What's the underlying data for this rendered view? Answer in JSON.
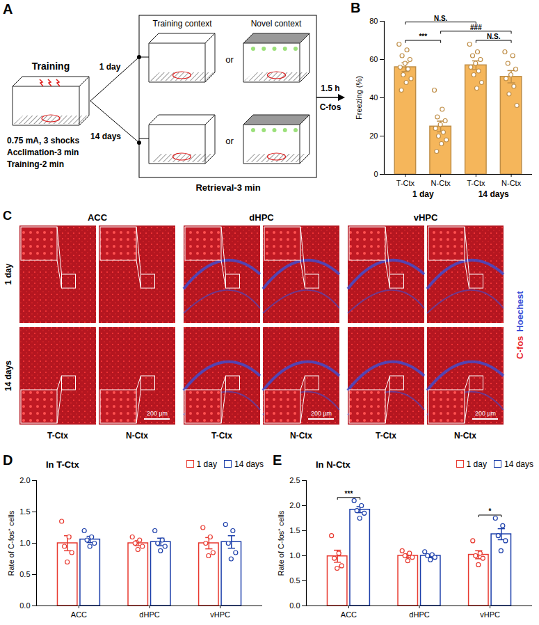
{
  "figure": {
    "A": {
      "label": "A",
      "training": "Training",
      "training_notes": [
        "0.75 mA, 3 shocks",
        "Acclimation-3 min",
        "Training-2 min"
      ],
      "delays": [
        "1 day",
        "14 days"
      ],
      "contexts": [
        "Training context",
        "Novel context"
      ],
      "or": "or",
      "retrieval": "Retrieval-3 min",
      "interval": "1.5 h",
      "readout": "C-fos"
    },
    "C": {
      "label": "C",
      "regions": [
        "ACC",
        "dHPC",
        "vHPC"
      ],
      "rows": [
        "1 day",
        "14 days"
      ],
      "columns": [
        "T-Ctx",
        "N-Ctx"
      ],
      "scale_bar": "200 µm",
      "channels": [
        {
          "name": "C-fos",
          "color": "#e8282d"
        },
        {
          "name": "Hoechest",
          "color": "#3b4fd6"
        }
      ]
    }
  },
  "chart_data": [
    {
      "panel_label": "B",
      "type": "bar",
      "categories": [
        "T-Ctx",
        "N-Ctx",
        "T-Ctx",
        "N-Ctx"
      ],
      "groups": [
        "1 day",
        "1 day",
        "14 days",
        "14 days"
      ],
      "values": [
        56,
        25,
        57,
        51
      ],
      "errors": [
        2.3,
        2.8,
        2.3,
        3.2
      ],
      "points": [
        [
          68,
          65,
          62,
          60,
          58,
          56,
          55,
          52,
          50,
          48,
          44
        ],
        [
          44,
          34,
          30,
          28,
          26,
          24,
          22,
          20,
          18,
          16,
          12
        ],
        [
          68,
          64,
          62,
          60,
          58,
          56,
          54,
          52,
          48,
          45
        ],
        [
          64,
          62,
          58,
          55,
          52,
          50,
          46,
          42,
          36
        ]
      ],
      "color": "#f5b65b",
      "ylabel": "Freezing (%)",
      "ylim": [
        0,
        80
      ],
      "yticks": [
        0,
        20,
        40,
        60,
        80
      ],
      "annotations": [
        {
          "text": "***",
          "between": [
            0,
            1
          ]
        },
        {
          "text": "###",
          "between": [
            1,
            3
          ]
        },
        {
          "text": "N.S.",
          "between": [
            0,
            2
          ]
        },
        {
          "text": "N.S.",
          "between": [
            2,
            3
          ]
        }
      ]
    },
    {
      "panel_label": "D",
      "type": "bar",
      "title": "In T-Ctx",
      "categories": [
        "ACC",
        "dHPC",
        "vHPC"
      ],
      "series": [
        {
          "name": "1 day",
          "color": "#e8392f",
          "values": [
            1.0,
            1.0,
            1.0
          ],
          "errors": [
            0.12,
            0.04,
            0.09
          ],
          "points": [
            [
              1.35,
              1.1,
              0.95,
              0.85,
              0.7
            ],
            [
              1.1,
              1.05,
              1.0,
              0.95,
              0.9
            ],
            [
              1.25,
              1.1,
              1.0,
              0.85,
              0.8
            ]
          ]
        },
        {
          "name": "14 days",
          "color": "#1c3faa",
          "values": [
            1.06,
            1.02,
            1.02
          ],
          "errors": [
            0.05,
            0.06,
            0.1
          ],
          "points": [
            [
              1.2,
              1.1,
              1.05,
              1.0,
              0.95
            ],
            [
              1.2,
              1.05,
              1.0,
              0.95,
              0.88
            ],
            [
              1.3,
              1.2,
              1.0,
              0.85,
              0.75
            ]
          ]
        }
      ],
      "ylabel": "Rate of C-fos⁺ cells",
      "ylim": [
        0,
        2
      ],
      "yticks": [
        {
          "value": 0,
          "label": "0.0"
        },
        0.5,
        {
          "value": 1,
          "label": "1.0"
        },
        1.5,
        {
          "value": 2,
          "label": "2.0"
        }
      ],
      "legend": "top-right"
    },
    {
      "panel_label": "E",
      "type": "bar",
      "title": "In N-Ctx",
      "categories": [
        "ACC",
        "dHPC",
        "vHPC"
      ],
      "series": [
        {
          "name": "1 day",
          "color": "#e8392f",
          "values": [
            0.99,
            1.0,
            1.02
          ],
          "errors": [
            0.12,
            0.04,
            0.08
          ],
          "points": [
            [
              1.4,
              1.05,
              0.95,
              0.8,
              0.75
            ],
            [
              1.1,
              1.05,
              1.0,
              0.97,
              0.9
            ],
            [
              1.3,
              1.05,
              1.0,
              0.95,
              0.82
            ]
          ]
        },
        {
          "name": "14 days",
          "color": "#1c3faa",
          "values": [
            1.92,
            1.0,
            1.43
          ],
          "errors": [
            0.06,
            0.03,
            0.11
          ],
          "points": [
            [
              2.1,
              2.0,
              1.9,
              1.85,
              1.75
            ],
            [
              1.08,
              1.02,
              1.0,
              0.97,
              0.92
            ],
            [
              1.75,
              1.6,
              1.4,
              1.3,
              1.1
            ]
          ]
        }
      ],
      "ylabel": "Rate of C-fos⁺ cells",
      "ylim": [
        0,
        2.5
      ],
      "yticks": [
        {
          "value": 0,
          "label": "0.0"
        },
        0.5,
        {
          "value": 1,
          "label": "1.0"
        },
        1.5,
        {
          "value": 2,
          "label": "2.0"
        },
        2.5
      ],
      "legend": "top-right",
      "annotations": [
        {
          "text": "***",
          "category": 0,
          "between": [
            0,
            1
          ]
        },
        {
          "text": "*",
          "category": 2,
          "between": [
            0,
            1
          ]
        }
      ]
    }
  ]
}
